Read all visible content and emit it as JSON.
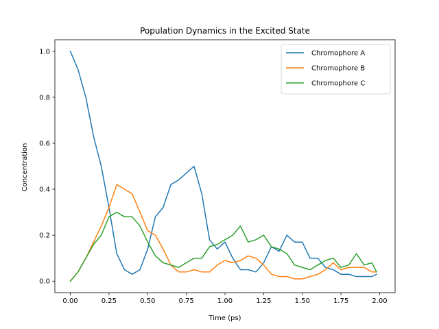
{
  "chart_data": {
    "type": "line",
    "title": "Population Dynamics in the Excited State",
    "xlabel": "Time (ps)",
    "ylabel": "Concentration",
    "xlim": [
      -0.1,
      2.1
    ],
    "ylim": [
      -0.05,
      1.05
    ],
    "xticks": [
      0.0,
      0.25,
      0.5,
      0.75,
      1.0,
      1.25,
      1.5,
      1.75,
      2.0
    ],
    "xtick_labels": [
      "0.00",
      "0.25",
      "0.50",
      "0.75",
      "1.00",
      "1.25",
      "1.50",
      "1.75",
      "2.00"
    ],
    "yticks": [
      0.0,
      0.2,
      0.4,
      0.6,
      0.8,
      1.0
    ],
    "ytick_labels": [
      "0.0",
      "0.2",
      "0.4",
      "0.6",
      "0.8",
      "1.0"
    ],
    "grid": false,
    "legend_position": "upper-right",
    "x": [
      0.0,
      0.05,
      0.1,
      0.15,
      0.2,
      0.25,
      0.3,
      0.35,
      0.4,
      0.45,
      0.5,
      0.55,
      0.6,
      0.65,
      0.7,
      0.75,
      0.8,
      0.85,
      0.9,
      0.95,
      1.0,
      1.05,
      1.1,
      1.15,
      1.2,
      1.25,
      1.3,
      1.35,
      1.4,
      1.45,
      1.5,
      1.55,
      1.6,
      1.65,
      1.7,
      1.75,
      1.8,
      1.85,
      1.9,
      1.95,
      1.98
    ],
    "series": [
      {
        "name": "Chromophore A",
        "color": "#1f77b4",
        "values": [
          1.0,
          0.92,
          0.8,
          0.63,
          0.5,
          0.32,
          0.12,
          0.05,
          0.03,
          0.05,
          0.14,
          0.28,
          0.32,
          0.42,
          0.44,
          0.47,
          0.5,
          0.38,
          0.18,
          0.14,
          0.17,
          0.1,
          0.05,
          0.05,
          0.04,
          0.08,
          0.15,
          0.13,
          0.2,
          0.17,
          0.17,
          0.1,
          0.1,
          0.06,
          0.05,
          0.03,
          0.03,
          0.02,
          0.02,
          0.02,
          0.03
        ]
      },
      {
        "name": "Chromophore B",
        "color": "#ff7f0e",
        "values": [
          0.0,
          0.04,
          0.1,
          0.17,
          0.24,
          0.32,
          0.42,
          0.4,
          0.38,
          0.3,
          0.22,
          0.2,
          0.14,
          0.07,
          0.04,
          0.04,
          0.05,
          0.04,
          0.04,
          0.07,
          0.09,
          0.08,
          0.09,
          0.11,
          0.1,
          0.07,
          0.03,
          0.02,
          0.02,
          0.01,
          0.01,
          0.02,
          0.03,
          0.05,
          0.08,
          0.05,
          0.06,
          0.06,
          0.06,
          0.04,
          0.04
        ]
      },
      {
        "name": "Chromophore C",
        "color": "#2ca02c",
        "values": [
          0.0,
          0.04,
          0.1,
          0.16,
          0.2,
          0.28,
          0.3,
          0.28,
          0.28,
          0.24,
          0.17,
          0.11,
          0.08,
          0.07,
          0.06,
          0.08,
          0.1,
          0.1,
          0.15,
          0.16,
          0.18,
          0.2,
          0.24,
          0.17,
          0.18,
          0.2,
          0.15,
          0.14,
          0.12,
          0.07,
          0.06,
          0.05,
          0.07,
          0.09,
          0.1,
          0.06,
          0.07,
          0.12,
          0.07,
          0.08,
          0.04
        ]
      }
    ]
  }
}
